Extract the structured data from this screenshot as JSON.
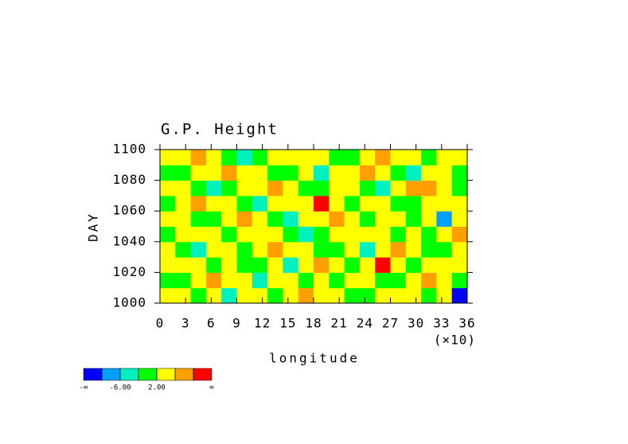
{
  "chart_data": {
    "type": "contour",
    "title": "G.P. Height",
    "xlabel": "longitude",
    "ylabel": "DAY",
    "x_multiplier": "(×10)",
    "xlim": [
      0,
      36
    ],
    "xticks": [
      0,
      3,
      6,
      9,
      12,
      15,
      18,
      21,
      24,
      27,
      30,
      33,
      36
    ],
    "ylim": [
      1000,
      1100
    ],
    "yticks": [
      1000,
      1020,
      1040,
      1060,
      1080,
      1100
    ],
    "z": [
      [
        4,
        3,
        1,
        2,
        -6,
        3,
        5,
        1,
        2,
        6,
        2,
        4,
        1,
        -1,
        3,
        4,
        2,
        0,
        5,
        -11
      ],
      [
        1,
        -1,
        4,
        6,
        3,
        2,
        -3,
        2,
        4,
        1,
        3,
        -2,
        5,
        4,
        1,
        0,
        3,
        7,
        2,
        -2
      ],
      [
        3,
        4,
        2,
        0,
        5,
        -2,
        1,
        3,
        -5,
        4,
        6,
        2,
        0,
        3,
        12,
        2,
        -1,
        4,
        3,
        5
      ],
      [
        5,
        1,
        -3,
        4,
        2,
        0,
        3,
        9,
        4,
        2,
        -1,
        1,
        4,
        -3,
        2,
        6,
        3,
        1,
        0,
        2
      ],
      [
        0,
        2,
        4,
        3,
        -1,
        2,
        5,
        3,
        1,
        -4,
        0,
        3,
        5,
        2,
        4,
        1,
        3,
        -2,
        4,
        6
      ],
      [
        2,
        5,
        1,
        -2,
        3,
        7,
        4,
        0,
        -3,
        2,
        4,
        6,
        2,
        -1,
        3,
        5,
        0,
        2,
        -7,
        3
      ],
      [
        -1,
        3,
        6,
        2,
        4,
        0,
        -4,
        2,
        5,
        3,
        11,
        2,
        0,
        3,
        4,
        -2,
        1,
        5,
        2,
        4
      ],
      [
        4,
        2,
        0,
        -3,
        1,
        5,
        3,
        6,
        2,
        -2,
        1,
        4,
        3,
        0,
        -5,
        2,
        6,
        8,
        3,
        0
      ],
      [
        1,
        -2,
        3,
        5,
        8,
        4,
        2,
        -1,
        0,
        3,
        -4,
        2,
        5,
        7,
        3,
        1,
        -3,
        2,
        4,
        1
      ],
      [
        3,
        4,
        7,
        2,
        1,
        -3,
        0,
        4,
        5,
        2,
        3,
        1,
        -1,
        4,
        6,
        3,
        2,
        0,
        5,
        3
      ]
    ],
    "levels": [
      -10,
      -6,
      -2,
      2,
      6,
      10
    ],
    "colors": [
      "#0000ff",
      "#00a0ff",
      "#00f0c0",
      "#00ff00",
      "#ffff00",
      "#ffa000",
      "#ff0000"
    ],
    "colorbar_labels": [
      {
        "value": -6,
        "label": "-6.00"
      },
      {
        "value": 2,
        "label": "2.00"
      }
    ],
    "colorbar_min_label": "-∞",
    "colorbar_max_label": "∞"
  }
}
